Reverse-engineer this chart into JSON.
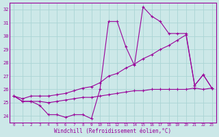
{
  "xlabel": "Windchill (Refroidissement éolien,°C)",
  "bg_color": "#cce8e8",
  "line_color": "#990099",
  "grid_color": "#aad4d4",
  "x_hours": [
    0,
    1,
    2,
    3,
    4,
    5,
    6,
    7,
    8,
    9,
    10,
    11,
    12,
    13,
    14,
    15,
    16,
    17,
    18,
    19,
    20,
    21,
    22,
    23
  ],
  "line_zigzag": [
    25.5,
    25.1,
    25.1,
    24.8,
    24.1,
    24.1,
    23.9,
    24.1,
    24.1,
    23.8,
    26.0,
    31.1,
    31.1,
    29.2,
    27.8,
    32.2,
    31.5,
    31.1,
    30.2,
    30.2,
    30.2,
    26.3,
    27.1,
    26.1
  ],
  "line_diagonal": [
    25.5,
    25.3,
    25.5,
    25.5,
    25.5,
    25.6,
    25.7,
    25.9,
    26.1,
    26.2,
    26.5,
    27.0,
    27.2,
    27.6,
    27.9,
    28.3,
    28.6,
    29.0,
    29.3,
    29.7,
    30.1,
    26.3,
    27.1,
    26.1
  ],
  "line_flat": [
    25.5,
    25.1,
    25.1,
    25.1,
    25.0,
    25.1,
    25.2,
    25.3,
    25.4,
    25.4,
    25.5,
    25.6,
    25.7,
    25.8,
    25.9,
    25.9,
    26.0,
    26.0,
    26.0,
    26.0,
    26.0,
    26.1,
    26.0,
    26.1
  ],
  "ylim": [
    23.5,
    32.5
  ],
  "yticks": [
    24,
    25,
    26,
    27,
    28,
    29,
    30,
    31,
    32
  ],
  "xticks": [
    0,
    1,
    2,
    3,
    4,
    5,
    6,
    7,
    8,
    9,
    10,
    11,
    12,
    13,
    14,
    15,
    16,
    17,
    18,
    19,
    20,
    21,
    22,
    23
  ]
}
